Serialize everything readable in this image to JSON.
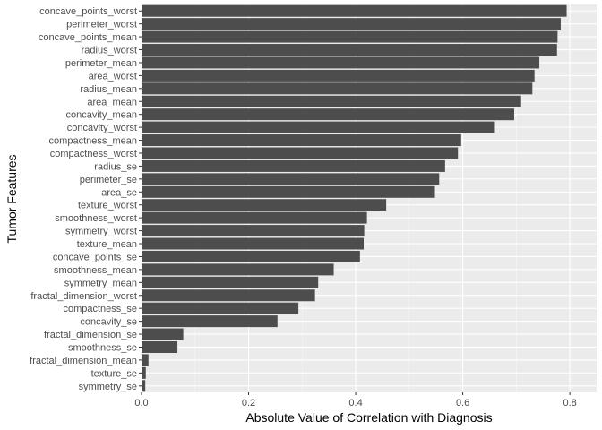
{
  "chart_data": {
    "type": "bar",
    "orientation": "horizontal",
    "xlabel": "Absolute Value of Correlation with Diagnosis",
    "ylabel": "Tumor Features",
    "xlim": [
      0,
      0.85
    ],
    "x_ticks": [
      "0.0",
      "0.2",
      "0.4",
      "0.6",
      "0.8"
    ],
    "x_tick_values": [
      0,
      0.2,
      0.4,
      0.6,
      0.8
    ],
    "grid": true,
    "categories": [
      "concave_points_worst",
      "perimeter_worst",
      "concave_points_mean",
      "radius_worst",
      "perimeter_mean",
      "area_worst",
      "radius_mean",
      "area_mean",
      "concavity_mean",
      "concavity_worst",
      "compactness_mean",
      "compactness_worst",
      "radius_se",
      "perimeter_se",
      "area_se",
      "texture_worst",
      "smoothness_worst",
      "symmetry_worst",
      "texture_mean",
      "concave_points_se",
      "smoothness_mean",
      "symmetry_mean",
      "fractal_dimension_worst",
      "compactness_se",
      "concavity_se",
      "fractal_dimension_se",
      "smoothness_se",
      "fractal_dimension_mean",
      "texture_se",
      "symmetry_se"
    ],
    "values": [
      0.794,
      0.783,
      0.777,
      0.776,
      0.743,
      0.734,
      0.73,
      0.709,
      0.696,
      0.66,
      0.597,
      0.591,
      0.567,
      0.556,
      0.548,
      0.457,
      0.421,
      0.416,
      0.415,
      0.408,
      0.359,
      0.33,
      0.324,
      0.293,
      0.254,
      0.078,
      0.067,
      0.013,
      0.008,
      0.007
    ],
    "colors": {
      "bar": "#4d4d4d",
      "panel": "#ebebeb",
      "grid_major": "#ffffff",
      "tick_text": "#4d4d4d"
    }
  }
}
